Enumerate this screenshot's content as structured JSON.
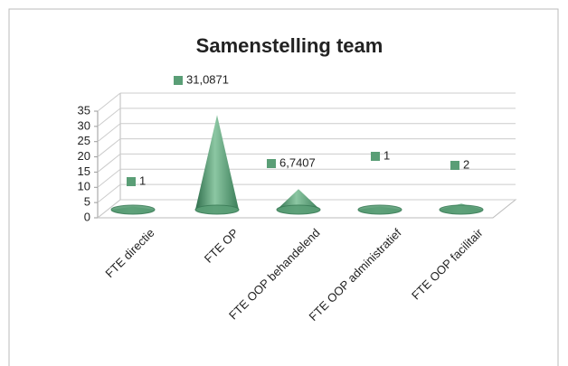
{
  "chart_data": {
    "type": "cone",
    "title": "Samenstelling team",
    "categories": [
      "FTE directie",
      "FTE OP",
      "FTE OOP behandelend",
      "FTE OOP administratief",
      "FTE OOP facilitair"
    ],
    "values": [
      1,
      31.0871,
      6.7407,
      1,
      2
    ],
    "value_labels": [
      "1",
      "31,0871",
      "6,7407",
      "1",
      "2"
    ],
    "color": "#5a9e76",
    "ylim": [
      0,
      35
    ],
    "yticks": [
      0,
      5,
      10,
      15,
      20,
      25,
      30,
      35
    ],
    "grid": true
  }
}
